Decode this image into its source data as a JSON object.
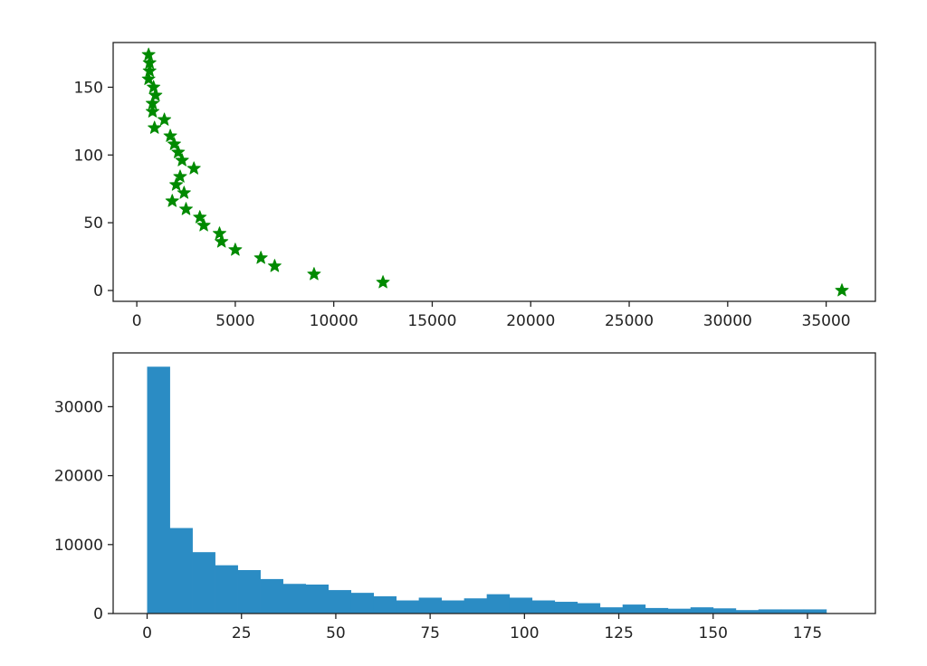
{
  "colors": {
    "scatter": "#008a00",
    "bars": "#2b8cc4",
    "axes": "#222222",
    "background": "#ffffff"
  },
  "chart_data": [
    {
      "type": "scatter",
      "marker": "star",
      "title": "",
      "xlabel": "",
      "ylabel": "",
      "xlim": [
        -1200,
        37500
      ],
      "ylim": [
        -8,
        183
      ],
      "xticks": [
        0,
        5000,
        10000,
        15000,
        20000,
        25000,
        30000,
        35000
      ],
      "xtick_labels": [
        "0",
        "5000",
        "10000",
        "15000",
        "20000",
        "25000",
        "30000",
        "35000"
      ],
      "yticks": [
        0,
        50,
        100,
        150
      ],
      "ytick_labels": [
        "0",
        "50",
        "100",
        "150"
      ],
      "grid": false,
      "points": [
        [
          35800,
          0
        ],
        [
          12500,
          6
        ],
        [
          9000,
          12
        ],
        [
          7000,
          18
        ],
        [
          6300,
          24
        ],
        [
          5000,
          30
        ],
        [
          4300,
          36
        ],
        [
          4200,
          42
        ],
        [
          3400,
          48
        ],
        [
          3200,
          54
        ],
        [
          2500,
          60
        ],
        [
          1800,
          66
        ],
        [
          2400,
          72
        ],
        [
          2000,
          78
        ],
        [
          2200,
          84
        ],
        [
          2900,
          90
        ],
        [
          2300,
          96
        ],
        [
          2100,
          102
        ],
        [
          1900,
          108
        ],
        [
          1700,
          114
        ],
        [
          1400,
          126
        ],
        [
          900,
          120
        ],
        [
          800,
          132
        ],
        [
          800,
          138
        ],
        [
          950,
          144
        ],
        [
          850,
          150
        ],
        [
          600,
          156
        ],
        [
          650,
          162
        ],
        [
          650,
          168
        ],
        [
          600,
          174
        ]
      ]
    },
    {
      "type": "bar",
      "histogram": true,
      "title": "",
      "xlabel": "",
      "ylabel": "",
      "xlim": [
        -9,
        193
      ],
      "ylim": [
        0,
        37800
      ],
      "xticks": [
        0,
        25,
        50,
        75,
        100,
        125,
        150,
        175
      ],
      "xtick_labels": [
        "0",
        "25",
        "50",
        "75",
        "100",
        "125",
        "150",
        "175"
      ],
      "yticks": [
        0,
        10000,
        20000,
        30000
      ],
      "ytick_labels": [
        "0",
        "10000",
        "20000",
        "30000"
      ],
      "grid": false,
      "bin_start": 0,
      "bin_width": 6,
      "values": [
        35800,
        12400,
        8900,
        7000,
        6300,
        5000,
        4300,
        4200,
        3400,
        3000,
        2500,
        1900,
        2300,
        1900,
        2200,
        2800,
        2300,
        1900,
        1700,
        1500,
        900,
        1300,
        800,
        700,
        900,
        750,
        500,
        600,
        600,
        600
      ]
    }
  ]
}
